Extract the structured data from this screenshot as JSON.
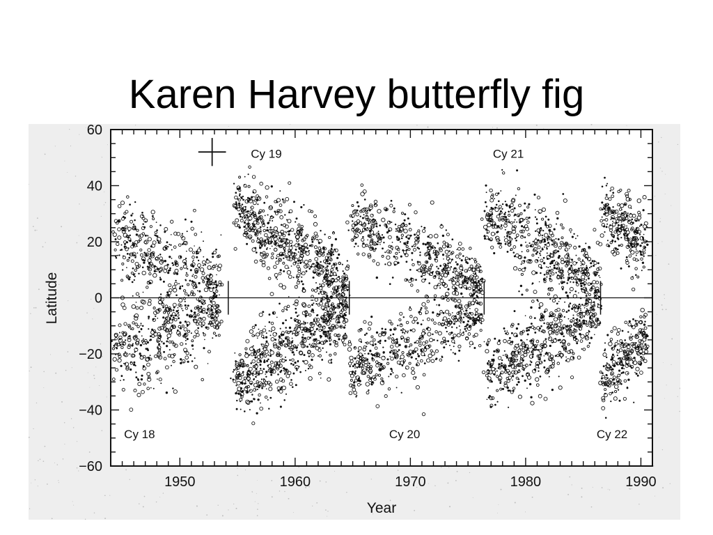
{
  "slide": {
    "title": "Karen Harvey butterfly fig"
  },
  "colors": {
    "panel": "#eeeeee",
    "ink": "#111111"
  },
  "chart_data": {
    "type": "scatter",
    "title": "",
    "xlabel": "Year",
    "ylabel": "Latitude",
    "xlim": [
      1944,
      1991
    ],
    "ylim": [
      -60,
      60
    ],
    "x_ticks": [
      1950,
      1960,
      1970,
      1980,
      1990
    ],
    "y_ticks": [
      60,
      40,
      20,
      0,
      -20,
      -40,
      -60
    ],
    "grid": false,
    "legend": "none",
    "equator_line": 0,
    "cycle_labels": [
      {
        "text": "Cy 18",
        "x": 1946.5,
        "y": -50
      },
      {
        "text": "Cy 19",
        "x": 1957.5,
        "y": 50
      },
      {
        "text": "Cy 20",
        "x": 1969.5,
        "y": -50
      },
      {
        "text": "Cy 21",
        "x": 1978.5,
        "y": 50
      },
      {
        "text": "Cy 22",
        "x": 1987.5,
        "y": -50
      }
    ],
    "cycle_minima": [
      1954.2,
      1964.7,
      1976.4,
      1986.5
    ],
    "error_bar": {
      "x": 1952.8,
      "y": 52,
      "dx": 1.2,
      "dy": 5
    },
    "series": [
      {
        "label": "Cy 18",
        "hemispheres": [
          {
            "x_start": 1944.3,
            "x_end": 1953.5,
            "lat_start": 20,
            "lat_end": 5,
            "spread": 9,
            "density": 420
          },
          {
            "x_start": 1944.3,
            "x_end": 1953.5,
            "lat_start": -20,
            "lat_end": -5,
            "spread": 9,
            "density": 420
          }
        ]
      },
      {
        "label": "Cy 19",
        "hemispheres": [
          {
            "x_start": 1954.8,
            "x_end": 1964.5,
            "lat_start": 32,
            "lat_end": 5,
            "spread": 8,
            "density": 650
          },
          {
            "x_start": 1954.8,
            "x_end": 1964.5,
            "lat_start": -30,
            "lat_end": -5,
            "spread": 8,
            "density": 650
          }
        ]
      },
      {
        "label": "Cy 20",
        "hemispheres": [
          {
            "x_start": 1964.8,
            "x_end": 1976.2,
            "lat_start": 28,
            "lat_end": 5,
            "spread": 7,
            "density": 520
          },
          {
            "x_start": 1964.8,
            "x_end": 1976.2,
            "lat_start": -26,
            "lat_end": -5,
            "spread": 7,
            "density": 520
          }
        ]
      },
      {
        "label": "Cy 21",
        "hemispheres": [
          {
            "x_start": 1976.5,
            "x_end": 1986.4,
            "lat_start": 30,
            "lat_end": 5,
            "spread": 8,
            "density": 560
          },
          {
            "x_start": 1976.5,
            "x_end": 1986.4,
            "lat_start": -28,
            "lat_end": -5,
            "spread": 8,
            "density": 560
          }
        ]
      },
      {
        "label": "Cy 22",
        "hemispheres": [
          {
            "x_start": 1986.6,
            "x_end": 1990.5,
            "lat_start": 30,
            "lat_end": 18,
            "spread": 7,
            "density": 260
          },
          {
            "x_start": 1986.6,
            "x_end": 1990.5,
            "lat_start": -28,
            "lat_end": -15,
            "spread": 7,
            "density": 260
          }
        ]
      }
    ]
  }
}
